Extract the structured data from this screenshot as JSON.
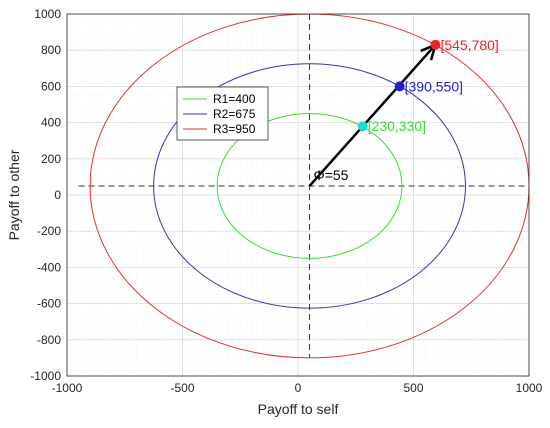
{
  "chart_data": {
    "type": "line",
    "xlabel": "Payoff to self",
    "ylabel": "Payoff to other",
    "xlim": [
      -1000,
      1000
    ],
    "ylim": [
      -1000,
      1000
    ],
    "grid": "minor",
    "x_ticks": [
      "-1000",
      "-500",
      "0",
      "500",
      "1000"
    ],
    "y_ticks": [
      "1000",
      "800",
      "600",
      "400",
      "200",
      "0",
      "-200",
      "-400",
      "-600",
      "-800",
      "-1000"
    ],
    "center": [
      50,
      50
    ],
    "circles": [
      {
        "name": "R1=400",
        "radius": 400,
        "color": "#33dd33"
      },
      {
        "name": "R2=675",
        "radius": 675,
        "color": "#3333bb"
      },
      {
        "name": "R3=950",
        "radius": 950,
        "color": "#dd3333"
      }
    ],
    "legend_position": "upper-left",
    "angle_label": "Φ=55",
    "points": [
      {
        "label": "[230,330]",
        "x": 280,
        "y": 380,
        "color": "#22ddcc",
        "text_color": "#33dd33"
      },
      {
        "label": "[390,550]",
        "x": 440,
        "y": 600,
        "color": "#2222cc",
        "text_color": "#2222cc"
      },
      {
        "label": "[545,780]",
        "x": 595,
        "y": 830,
        "color": "#ee2222",
        "text_color": "#ee2222"
      }
    ],
    "arrow": {
      "from": [
        50,
        50
      ],
      "to": [
        595,
        830
      ],
      "color": "#000000"
    }
  }
}
